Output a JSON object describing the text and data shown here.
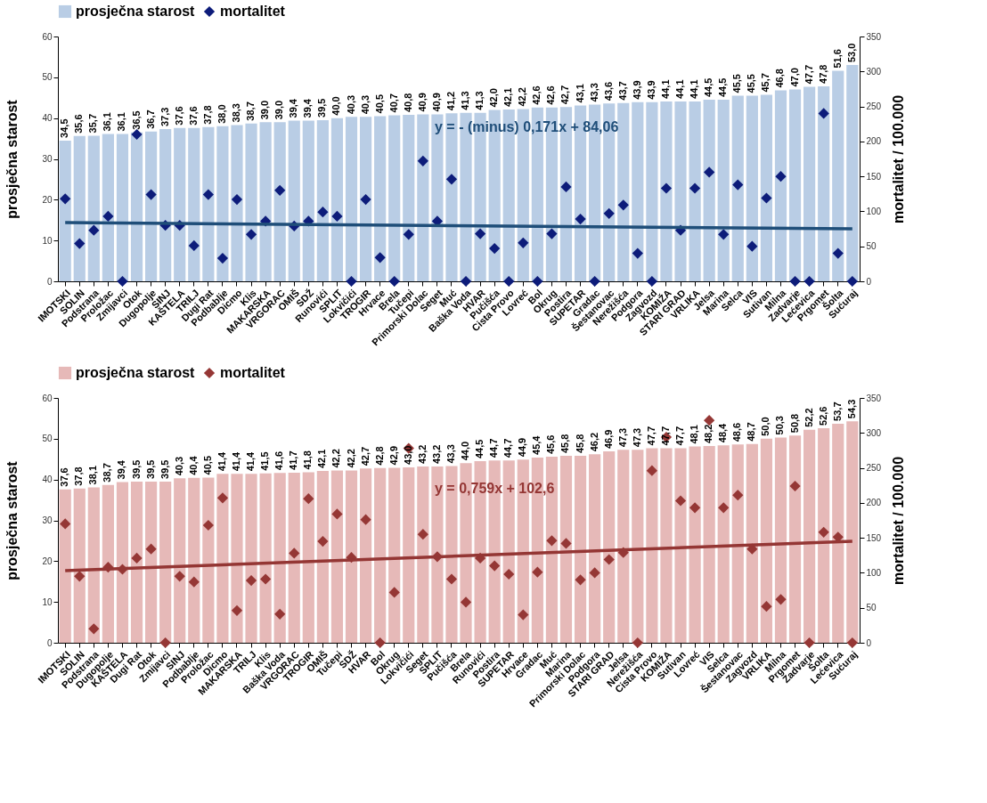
{
  "chart_data": [
    {
      "type": "bar",
      "ylabel": "prosječna starost",
      "y2label": "mortalitet / 100.000",
      "legend": "top",
      "grid": false,
      "ylim": [
        0,
        60
      ],
      "yticks": [
        0,
        10,
        20,
        30,
        40,
        50,
        60
      ],
      "y2lim": [
        0,
        350
      ],
      "y2ticks": [
        0,
        50,
        100,
        150,
        200,
        250,
        300,
        350
      ],
      "annotations": [
        "y = - (minus) 0,171x + 84,06"
      ],
      "categories": [
        "IMOTSKI",
        "SOLIN",
        "Podstrana",
        "Proložac",
        "Zmijavci",
        "Otok",
        "Dugopolje",
        "SINJ",
        "KAŠTELA",
        "TRILJ",
        "Dugi Rat",
        "Podbablje",
        "Dicmo",
        "Klis",
        "MAKARSKA",
        "VRGORAC",
        "OMIŠ",
        "SDŽ",
        "Runovići",
        "SPLIT",
        "Lokvičići",
        "TROGIR",
        "Hrvace",
        "Brela",
        "Tučepi",
        "Primorski Dolac",
        "Seget",
        "Muć",
        "Baška Voda",
        "HVAR",
        "Pučišća",
        "Cista Provo",
        "Lovreć",
        "Bol",
        "Okrug",
        "Postira",
        "SUPETAR",
        "Gradac",
        "Šestanovac",
        "Nerežišća",
        "Podgora",
        "Zagvozd",
        "KOMIŽA",
        "STARI GRAD",
        "VRLIKA",
        "Jelsa",
        "Marina",
        "Selca",
        "VIS",
        "Sutivan",
        "Milna",
        "Zadvarje",
        "Lećevica",
        "Prgomet",
        "Šolta",
        "Sućuraj"
      ],
      "series": [
        {
          "name": "prosječna starost",
          "color": "#b9cde5",
          "values": [
            34.5,
            35.6,
            35.7,
            36.1,
            36.1,
            36.5,
            36.7,
            37.3,
            37.6,
            37.6,
            37.8,
            38.0,
            38.3,
            38.7,
            39.0,
            39.0,
            39.4,
            39.4,
            39.5,
            40.0,
            40.3,
            40.3,
            40.5,
            40.7,
            40.8,
            40.9,
            40.9,
            41.2,
            41.3,
            41.3,
            42.0,
            42.1,
            42.2,
            42.6,
            42.6,
            42.7,
            43.1,
            43.3,
            43.6,
            43.7,
            43.9,
            43.9,
            44.1,
            44.1,
            44.1,
            44.5,
            44.5,
            45.5,
            45.5,
            45.7,
            46.8,
            47.0,
            47.7,
            47.8,
            51.6,
            53.0
          ],
          "value_labels": [
            "34,5",
            "35,6",
            "35,7",
            "36,1",
            "36,1",
            "36,5",
            "36,7",
            "37,3",
            "37,6",
            "37,6",
            "37,8",
            "38,0",
            "38,3",
            "38,7",
            "39,0",
            "39,0",
            "39,4",
            "39,4",
            "39,5",
            "40,0",
            "40,3",
            "40,3",
            "40,5",
            "40,7",
            "40,8",
            "40,9",
            "40,9",
            "41,2",
            "41,3",
            "41,3",
            "42,0",
            "42,1",
            "42,2",
            "42,6",
            "42,6",
            "42,7",
            "43,1",
            "43,3",
            "43,6",
            "43,7",
            "43,9",
            "43,9",
            "44,1",
            "44,1",
            "44,1",
            "44,5",
            "44,5",
            "45,5",
            "45,5",
            "45,7",
            "46,8",
            "47,0",
            "47,7",
            "47,8",
            "51,6",
            "53,0"
          ]
        },
        {
          "name": "mortalitet",
          "type": "scatter",
          "axis": "y2",
          "marker": "diamond",
          "color": "#0d1c7a",
          "values": [
            118,
            54,
            73,
            93,
            0,
            210,
            124,
            80,
            80,
            51,
            124,
            33,
            117,
            67,
            86,
            130,
            79,
            86,
            99,
            93,
            0,
            117,
            34,
            0,
            67,
            172,
            86,
            146,
            0,
            68,
            47,
            0,
            55,
            0,
            68,
            135,
            89,
            0,
            97,
            109,
            40,
            0,
            133,
            73,
            133,
            156,
            67,
            138,
            50,
            119,
            150,
            0,
            0,
            240,
            40,
            0
          ]
        },
        {
          "type": "line",
          "axis": "y2",
          "color": "#1f4e79",
          "x": [
            "IMOTSKI",
            "Sućuraj"
          ],
          "values": [
            84,
            75
          ]
        }
      ]
    },
    {
      "type": "bar",
      "ylabel": "prosječna starost",
      "y2label": "mortalitet / 100.000",
      "legend": "top",
      "grid": false,
      "ylim": [
        0,
        60
      ],
      "yticks": [
        0,
        10,
        20,
        30,
        40,
        50,
        60
      ],
      "y2lim": [
        0,
        350
      ],
      "y2ticks": [
        0,
        50,
        100,
        150,
        200,
        250,
        300,
        350
      ],
      "annotations": [
        "y = 0,759x + 102,6"
      ],
      "categories": [
        "IMOTSKI",
        "SOLIN",
        "Podstrana",
        "Dugopolje",
        "KAŠTELA",
        "Dugi Rat",
        "Otok",
        "Zmijavci",
        "SINJ",
        "Podbablje",
        "Proložac",
        "Dicmo",
        "MAKARSKA",
        "TRILJ",
        "Klis",
        "Baška Voda",
        "VRGORAC",
        "TROGIR",
        "OMIŠ",
        "Tučepi",
        "SDŽ",
        "HVAR",
        "Bol",
        "Okrug",
        "Lokvičići",
        "Seget",
        "SPLIT",
        "Pučišća",
        "Brela",
        "Runovići",
        "Postira",
        "SUPETAR",
        "Hrvace",
        "Gradac",
        "Muć",
        "Marina",
        "Primorski Dolac",
        "Podgora",
        "STARI GRAD",
        "Jelsa",
        "Nerežišća",
        "Cista Provo",
        "KOMIŽA",
        "Sutivan",
        "Lovreć",
        "VIS",
        "Selca",
        "Šestanovac",
        "Zagvozd",
        "VRLIKA",
        "Milna",
        "Prgomet",
        "Zadvarje",
        "Šolta",
        "Lećevica",
        "Sućuraj"
      ],
      "series": [
        {
          "name": "prosječna starost",
          "color": "#e6b9b8",
          "values": [
            37.6,
            37.8,
            38.1,
            38.7,
            39.4,
            39.5,
            39.5,
            39.5,
            40.3,
            40.4,
            40.5,
            41.4,
            41.4,
            41.4,
            41.5,
            41.6,
            41.7,
            41.8,
            42.1,
            42.2,
            42.2,
            42.7,
            42.8,
            42.9,
            43.0,
            43.2,
            43.2,
            43.3,
            44.0,
            44.5,
            44.7,
            44.7,
            44.9,
            45.4,
            45.6,
            45.8,
            45.8,
            46.2,
            46.9,
            47.3,
            47.3,
            47.7,
            47.7,
            47.7,
            48.1,
            48.2,
            48.4,
            48.6,
            48.7,
            50.0,
            50.3,
            50.8,
            52.2,
            52.6,
            53.7,
            54.3
          ],
          "value_labels": [
            "37,6",
            "37,8",
            "38,1",
            "38,7",
            "39,4",
            "39,5",
            "39,5",
            "39,5",
            "40,3",
            "40,4",
            "40,5",
            "41,4",
            "41,4",
            "41,4",
            "41,5",
            "41,6",
            "41,7",
            "41,8",
            "42,1",
            "42,2",
            "42,2",
            "42,7",
            "42,8",
            "42,9",
            "43,0",
            "43,2",
            "43,2",
            "43,3",
            "44,0",
            "44,5",
            "44,7",
            "44,7",
            "44,9",
            "45,4",
            "45,6",
            "45,8",
            "45,8",
            "46,2",
            "46,9",
            "47,3",
            "47,3",
            "47,7",
            "47,7",
            "47,7",
            "48,1",
            "48,2",
            "48,4",
            "48,6",
            "48,7",
            "50,0",
            "50,3",
            "50,8",
            "52,2",
            "52,6",
            "53,7",
            "54,3"
          ]
        },
        {
          "name": "mortalitet",
          "type": "scatter",
          "axis": "y2",
          "marker": "diamond",
          "color": "#953735",
          "values": [
            170,
            95,
            20,
            108,
            105,
            121,
            134,
            0,
            95,
            87,
            168,
            207,
            46,
            89,
            91,
            41,
            128,
            206,
            145,
            184,
            122,
            176,
            0,
            72,
            278,
            155,
            123,
            91,
            58,
            121,
            110,
            98,
            40,
            101,
            146,
            142,
            90,
            100,
            119,
            129,
            0,
            246,
            294,
            203,
            193,
            318,
            193,
            211,
            134,
            52,
            62,
            224,
            0,
            158,
            151,
            0
          ]
        },
        {
          "type": "line",
          "axis": "y2",
          "color": "#943634",
          "x": [
            "IMOTSKI",
            "Sućuraj"
          ],
          "values": [
            103,
            145
          ]
        }
      ]
    }
  ]
}
